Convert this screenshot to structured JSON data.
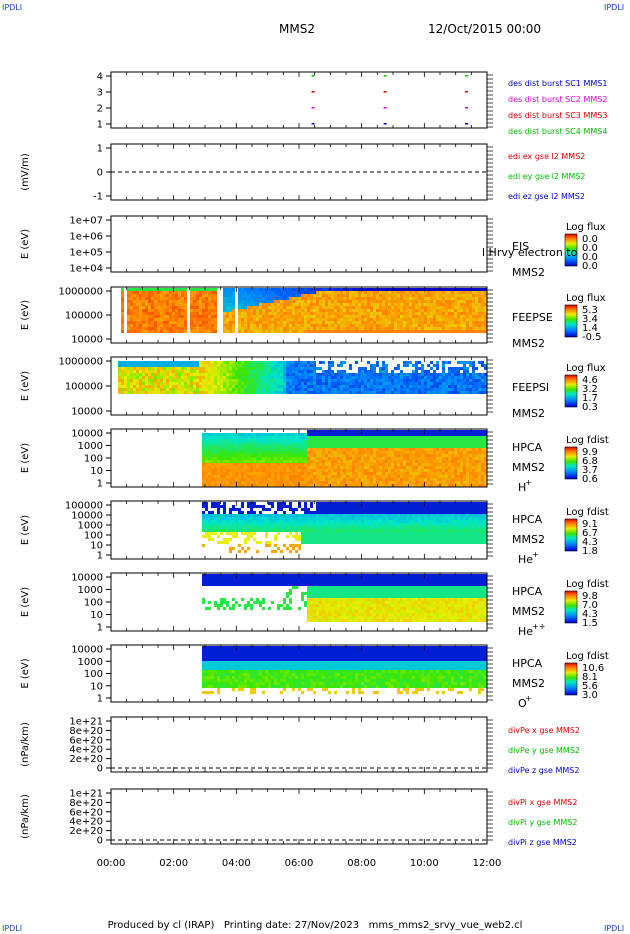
{
  "corner_label": "IPDLI",
  "header": {
    "title": "MMS2",
    "date": "12/Oct/2015 00:00"
  },
  "footer": {
    "producer": "Produced by cl (IRAP)",
    "printing": "Printing date: 27/Nov/2023",
    "file": "mms_mms2_srvy_vue_web2.cl"
  },
  "x_axis": {
    "ticks": [
      "00:00",
      "02:00",
      "04:00",
      "06:00",
      "08:00",
      "10:00",
      "12:00"
    ]
  },
  "colors": {
    "red": "#dd0000",
    "magenta": "#dd00dd",
    "green": "#00bb00",
    "blue": "#0000cc",
    "axis": "#000000"
  },
  "chart_data": [
    {
      "type": "scatter",
      "id": "panel-burst",
      "yticks": [
        "4",
        "3",
        "2",
        "1"
      ],
      "series": [
        {
          "name": "des dist burst SC1 MMS1",
          "color": "#0000cc"
        },
        {
          "name": "des dist burst SC2 MMS2",
          "color": "#dd00dd"
        },
        {
          "name": "des dist burst SC3 MMS3",
          "color": "#dd0000"
        },
        {
          "name": "des dist burst SC4 MMS4",
          "color": "#00bb00"
        }
      ],
      "markers_hours": [
        6.4,
        8.7,
        11.3
      ]
    },
    {
      "type": "line",
      "id": "panel-edi",
      "ylabel": "(mV/m)",
      "yticks": [
        "1",
        "0",
        "-1"
      ],
      "series": [
        {
          "name": "edi ex gse l2 MMS2",
          "color": "#dd0000"
        },
        {
          "name": "edi ey gse l2 MMS2",
          "color": "#00bb00"
        },
        {
          "name": "edi ez gse l2 MMS2",
          "color": "#0000cc"
        }
      ]
    },
    {
      "type": "heatmap",
      "id": "panel-eis",
      "ylabel": "E (eV)",
      "yticks": [
        "1e+07",
        "1e+06",
        "1e+05",
        "1e+04"
      ],
      "labels": [
        "EIS",
        "MMS2"
      ],
      "overlay": "l Hrvy electron to",
      "colorbar": {
        "title": "Log flux",
        "ticks": [
          "0.0",
          "0.0",
          "0.0",
          "0.0"
        ]
      }
    },
    {
      "type": "heatmap",
      "id": "panel-feepse",
      "ylabel": "E (eV)",
      "yticks": [
        "1000000",
        "100000",
        "10000"
      ],
      "labels": [
        "FEEPSE",
        "MMS2"
      ],
      "colorbar": {
        "title": "Log flux",
        "ticks": [
          "5.3",
          "3.4",
          "1.4",
          "-0.5"
        ]
      }
    },
    {
      "type": "heatmap",
      "id": "panel-feepsi",
      "ylabel": "E (eV)",
      "yticks": [
        "1000000",
        "100000",
        "10000"
      ],
      "labels": [
        "FEEPSI",
        "MMS2"
      ],
      "colorbar": {
        "title": "Log flux",
        "ticks": [
          "4.6",
          "3.2",
          "1.7",
          "0.3"
        ]
      }
    },
    {
      "type": "heatmap",
      "id": "panel-hpca-h",
      "ylabel": "E (eV)",
      "yticks": [
        "10000",
        "1000",
        "100",
        "10",
        "1"
      ],
      "labels": [
        "HPCA",
        "MMS2"
      ],
      "species": "H",
      "species_sup": "+",
      "colorbar": {
        "title": "Log fdist",
        "ticks": [
          "9.9",
          "6.8",
          "3.7",
          "0.6"
        ]
      }
    },
    {
      "type": "heatmap",
      "id": "panel-hpca-he",
      "ylabel": "E (eV)",
      "yticks": [
        "100000",
        "10000",
        "1000",
        "100",
        "10",
        "1"
      ],
      "labels": [
        "HPCA",
        "MMS2"
      ],
      "species": "He",
      "species_sup": "+",
      "colorbar": {
        "title": "Log fdist",
        "ticks": [
          "9.1",
          "6.7",
          "4.3",
          "1.8"
        ]
      }
    },
    {
      "type": "heatmap",
      "id": "panel-hpca-hepp",
      "ylabel": "E (eV)",
      "yticks": [
        "10000",
        "1000",
        "100",
        "10",
        "1"
      ],
      "labels": [
        "HPCA",
        "MMS2"
      ],
      "species": "He",
      "species_sup": "++",
      "colorbar": {
        "title": "Log fdist",
        "ticks": [
          "9.8",
          "7.0",
          "4.3",
          "1.5"
        ]
      }
    },
    {
      "type": "heatmap",
      "id": "panel-hpca-o",
      "ylabel": "E (eV)",
      "yticks": [
        "10000",
        "1000",
        "100",
        "10",
        "1"
      ],
      "labels": [
        "HPCA",
        "MMS2"
      ],
      "species": "O",
      "species_sup": "+",
      "colorbar": {
        "title": "Log fdist",
        "ticks": [
          "10.6",
          "8.1",
          "5.6",
          "3.0"
        ]
      }
    },
    {
      "type": "line",
      "id": "panel-divpe",
      "ylabel": "(nPa/km)",
      "yticks": [
        "1e+21",
        "8e+20",
        "6e+20",
        "4e+20",
        "2e+20",
        "0"
      ],
      "series": [
        {
          "name": "divPe x gse MMS2",
          "color": "#dd0000"
        },
        {
          "name": "divPe y gse MMS2",
          "color": "#00bb00"
        },
        {
          "name": "divPe z gse MMS2",
          "color": "#0000cc"
        }
      ]
    },
    {
      "type": "line",
      "id": "panel-divpi",
      "ylabel": "(nPa/km)",
      "yticks": [
        "1e+21",
        "8e+20",
        "6e+20",
        "4e+20",
        "2e+20",
        "0"
      ],
      "series": [
        {
          "name": "divPi x gse MMS2",
          "color": "#dd0000"
        },
        {
          "name": "divPi y gse MMS2",
          "color": "#00bb00"
        },
        {
          "name": "divPi z gse MMS2",
          "color": "#0000cc"
        }
      ]
    }
  ]
}
